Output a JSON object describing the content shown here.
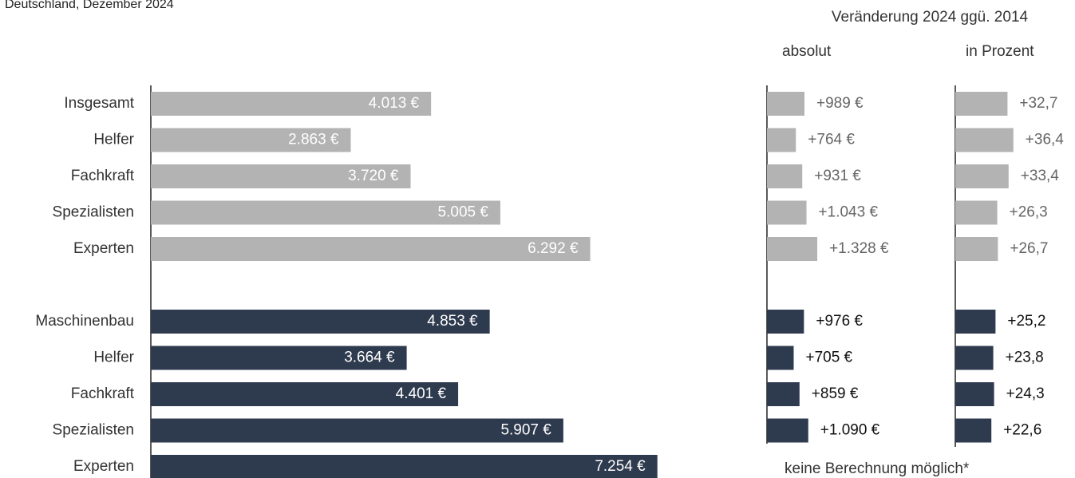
{
  "change_header": "Veränderung  2024 ggü. 2014",
  "chart_data": [
    {
      "type": "hbar",
      "subtitle": "Deutschland, Dezember 2024",
      "categories": [
        "Insgesamt",
        "Helfer",
        "Fachkraft",
        "Spezialisten",
        "Experten",
        null,
        "Maschinenbau",
        "Helfer",
        "Fachkraft",
        "Spezialisten",
        "Experten"
      ],
      "values": [
        4013,
        2863,
        3720,
        5005,
        6292,
        null,
        4853,
        3664,
        4401,
        5907,
        7254
      ],
      "value_labels": [
        "4.013 €",
        "2.863 €",
        "3.720 €",
        "5.005 €",
        "6.292 €",
        null,
        "4.853 €",
        "3.664 €",
        "4.401 €",
        "5.907 €",
        "7.254 €"
      ],
      "colors": [
        "#b3b3b3",
        "#b3b3b3",
        "#b3b3b3",
        "#b3b3b3",
        "#b3b3b3",
        null,
        "#2e3a4e",
        "#2e3a4e",
        "#2e3a4e",
        "#2e3a4e",
        "#2e3a4e"
      ],
      "xlim": [
        0,
        8000
      ]
    },
    {
      "type": "hbar",
      "title": "absolut",
      "values": [
        989,
        764,
        931,
        1043,
        1328,
        null,
        976,
        705,
        859,
        1090,
        null
      ],
      "value_labels": [
        "+989 €",
        "+764 €",
        "+931 €",
        "+1.043 €",
        "+1.328 €",
        null,
        "+976 €",
        "+705 €",
        "+859 €",
        "+1.090 €",
        null
      ],
      "colors": [
        "#b3b3b3",
        "#b3b3b3",
        "#b3b3b3",
        "#b3b3b3",
        "#b3b3b3",
        null,
        "#2e3a4e",
        "#2e3a4e",
        "#2e3a4e",
        "#2e3a4e",
        "#2e3a4e"
      ],
      "xlim": [
        0,
        4000
      ],
      "annotation": "keine Berechnung  möglich*"
    },
    {
      "type": "hbar",
      "title": "in Prozent",
      "values": [
        32.7,
        36.4,
        33.4,
        26.3,
        26.7,
        null,
        25.2,
        23.8,
        24.3,
        22.6,
        null
      ],
      "value_labels": [
        "+32,7",
        "+36,4",
        "+33,4",
        "+26,3",
        "+26,7",
        null,
        "+25,2",
        "+23,8",
        "+24,3",
        "+22,6",
        null
      ],
      "colors": [
        "#b3b3b3",
        "#b3b3b3",
        "#b3b3b3",
        "#b3b3b3",
        "#b3b3b3",
        null,
        "#2e3a4e",
        "#2e3a4e",
        "#2e3a4e",
        "#2e3a4e",
        "#2e3a4e"
      ],
      "xlim": [
        0,
        50
      ]
    }
  ]
}
